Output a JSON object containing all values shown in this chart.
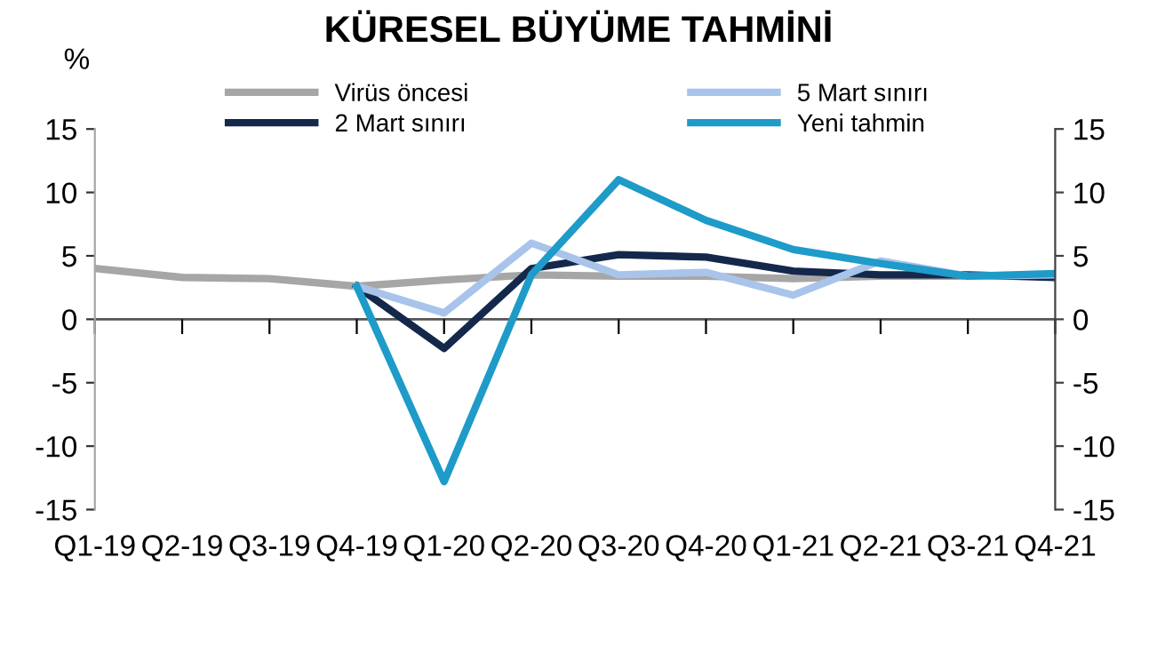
{
  "chart_data": {
    "type": "line",
    "title": "KÜRESEL BÜYÜME TAHMİNİ",
    "ylabel": "%",
    "categories": [
      "Q1-19",
      "Q2-19",
      "Q3-19",
      "Q4-19",
      "Q1-20",
      "Q2-20",
      "Q3-20",
      "Q4-20",
      "Q1-21",
      "Q2-21",
      "Q3-21",
      "Q4-21"
    ],
    "series": [
      {
        "name": "Virüs öncesi",
        "color": "#a6a6a6",
        "values": [
          4.0,
          3.3,
          3.2,
          2.6,
          3.1,
          3.5,
          3.4,
          3.4,
          3.2,
          3.4,
          3.4,
          3.4
        ]
      },
      {
        "name": "2 Mart sınırı",
        "color": "#14284b",
        "values": [
          null,
          null,
          null,
          2.6,
          -2.3,
          4.0,
          5.1,
          4.9,
          3.8,
          3.5,
          3.5,
          3.3
        ]
      },
      {
        "name": "5 Mart sınırı",
        "color": "#a9c4eb",
        "values": [
          null,
          null,
          null,
          2.6,
          0.5,
          6.0,
          3.5,
          3.7,
          1.9,
          4.6,
          3.4,
          3.5
        ]
      },
      {
        "name": "Yeni tahmin",
        "color": "#1e9bc8",
        "values": [
          null,
          null,
          null,
          2.6,
          -12.8,
          3.5,
          11.0,
          7.8,
          5.5,
          4.4,
          3.4,
          3.6
        ]
      }
    ],
    "ylim": [
      -15,
      15
    ],
    "yticks": [
      -15,
      -10,
      -5,
      0,
      5,
      10,
      15
    ],
    "y2lim": [
      -15,
      15
    ],
    "y2ticks": [
      -15,
      -10,
      -5,
      0,
      5,
      10,
      15
    ],
    "ref_lines": [
      {
        "axis": "y",
        "value": 0,
        "color": "#555555"
      }
    ],
    "legend": "top",
    "grid": false,
    "marker": "none",
    "line_style": "solid"
  }
}
